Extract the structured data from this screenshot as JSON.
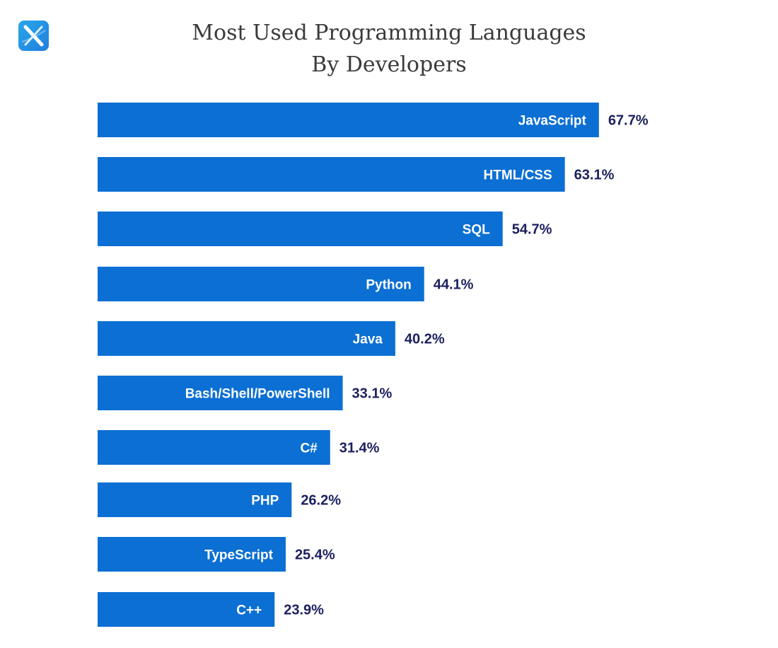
{
  "logo": {
    "icon": "x-logo-icon",
    "colors": [
      "#2aa6ea",
      "#1f7fe0"
    ]
  },
  "chart_data": {
    "type": "bar",
    "orientation": "horizontal",
    "title_lines": [
      "Most Used Programming Languages",
      "By Developers"
    ],
    "categories": [
      "JavaScript",
      "HTML/CSS",
      "SQL",
      "Python",
      "Java",
      "Bash/Shell/PowerShell",
      "C#",
      "PHP",
      "TypeScript",
      "C++"
    ],
    "values": [
      67.7,
      63.1,
      54.7,
      44.1,
      40.2,
      33.1,
      31.4,
      26.2,
      25.4,
      23.9
    ],
    "value_labels": [
      "67.7%",
      "63.1%",
      "54.7%",
      "44.1%",
      "40.2%",
      "33.1%",
      "31.4%",
      "26.2%",
      "25.4%",
      "23.9%"
    ],
    "xlabel": "",
    "ylabel": "",
    "xlim": [
      0,
      100
    ],
    "grid": false,
    "legend": "none",
    "bar_color": "#0b6fd3",
    "value_label_color": "#1b1f5e"
  }
}
